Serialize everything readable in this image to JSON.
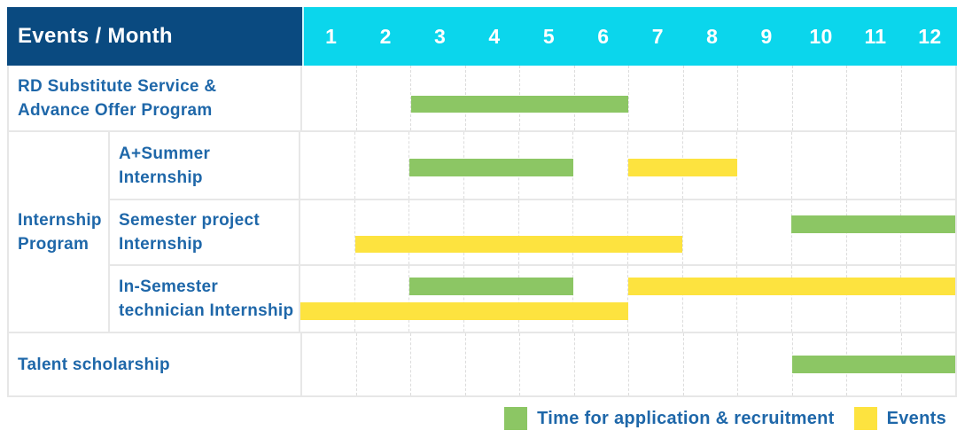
{
  "header": {
    "title": "Events / Month",
    "months": [
      "1",
      "2",
      "3",
      "4",
      "5",
      "6",
      "7",
      "8",
      "9",
      "10",
      "11",
      "12"
    ]
  },
  "labels": {
    "rd": [
      "RD Substitute Service &",
      "Advance Offer Program"
    ],
    "internship_group": [
      "Internship",
      "Program"
    ],
    "a_summer": [
      "A+Summer",
      "Internship"
    ],
    "semester_project": [
      "Semester project",
      "Internship"
    ],
    "in_semester": [
      "In-Semester",
      "technician Internship"
    ],
    "talent": [
      "Talent scholarship"
    ]
  },
  "legend": [
    {
      "label": "Time for application & recruitment",
      "color_key": "green"
    },
    {
      "label": "Events",
      "color_key": "yellow"
    }
  ],
  "colors": {
    "navy": "#0a4a80",
    "cyan": "#0bd6ec",
    "green": "#8cc664",
    "yellow": "#fde33f",
    "blue": "#1e67a9"
  },
  "chart_data": {
    "type": "gantt",
    "x_unit": "month",
    "x_range": [
      1,
      12
    ],
    "legend_position": "bottom-right",
    "series_legend": [
      "Time for application & recruitment",
      "Events"
    ],
    "rows": [
      {
        "label": "RD Substitute Service & Advance Offer Program",
        "group": null,
        "bars": [
          {
            "series": "Time for application & recruitment",
            "start_month": 3,
            "end_month": 6,
            "line": 1
          }
        ]
      },
      {
        "label": "A+Summer Internship",
        "group": "Internship Program",
        "bars": [
          {
            "series": "Time for application & recruitment",
            "start_month": 3,
            "end_month": 5,
            "line": 1
          },
          {
            "series": "Events",
            "start_month": 7,
            "end_month": 8,
            "line": 1
          }
        ]
      },
      {
        "label": "Semester project Internship",
        "group": "Internship Program",
        "bars": [
          {
            "series": "Time for application & recruitment",
            "start_month": 10,
            "end_month": 12,
            "line": 1
          },
          {
            "series": "Events",
            "start_month": 2,
            "end_month": 7,
            "line": 2
          }
        ]
      },
      {
        "label": "In-Semester technician Internship",
        "group": "Internship Program",
        "bars": [
          {
            "series": "Time for application & recruitment",
            "start_month": 3,
            "end_month": 5,
            "line": 1
          },
          {
            "series": "Events",
            "start_month": 7,
            "end_month": 12,
            "line": 1
          },
          {
            "series": "Events",
            "start_month": 1,
            "end_month": 6,
            "line": 2
          }
        ]
      },
      {
        "label": "Talent scholarship",
        "group": null,
        "bars": [
          {
            "series": "Time for application & recruitment",
            "start_month": 10,
            "end_month": 12,
            "line": 1
          }
        ]
      }
    ]
  }
}
